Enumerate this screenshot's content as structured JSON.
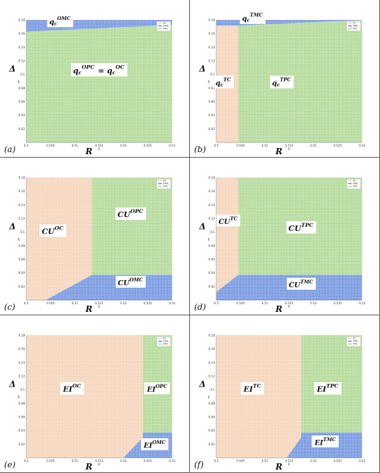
{
  "colors": {
    "OC": "#f3c9a9",
    "TC": "#f3c9a9",
    "OPC": "#9fd07d",
    "TPC": "#9fd07d",
    "OMC": "#4f7bd8",
    "TMC": "#4f7bd8",
    "border": "#555555"
  },
  "chart_data": [
    {
      "type": "heatmap",
      "panel_label": "(a)",
      "xlabel": "R",
      "ylabel": "Δ",
      "x_axis_small_label": "R",
      "y_axis_small_label": "Δ",
      "xlim": [
        0.5,
        0.53
      ],
      "ylim": [
        0,
        0.18
      ],
      "xticks": [
        "0.5",
        "0.505",
        "0.51",
        "0.515",
        "0.52",
        "0.525",
        "0.53"
      ],
      "yticks": [
        "0.02",
        "0.04",
        "0.06",
        "0.08",
        "0.1",
        "0.12",
        "0.14",
        "0.16",
        "0.18"
      ],
      "legend": [
        "OC",
        "OMC",
        "OPC"
      ],
      "legend_position": "top-right",
      "regions": [
        {
          "name": "OPC",
          "polygon": [
            [
              0.5,
              0
            ],
            [
              0.53,
              0
            ],
            [
              0.53,
              0.173
            ],
            [
              0.5,
              0.163
            ]
          ]
        },
        {
          "name": "OMC",
          "polygon": [
            [
              0.5,
              0.163
            ],
            [
              0.53,
              0.173
            ],
            [
              0.53,
              0.18
            ],
            [
              0.5,
              0.18
            ]
          ]
        }
      ],
      "annotations": [
        {
          "base": "q",
          "sub": "c",
          "sup": "OMC",
          "x": 0.507,
          "y": 0.177,
          "size": 10
        },
        {
          "base": "q",
          "sub": "c",
          "sup": "OPC",
          "tail": {
            "base": "q",
            "sub": "c",
            "sup": "OC"
          },
          "joiner": "=",
          "x": 0.515,
          "y": 0.105,
          "size": 11
        }
      ]
    },
    {
      "type": "heatmap",
      "panel_label": "(b)",
      "xlabel": "R",
      "ylabel": "Δ",
      "x_axis_small_label": "R",
      "y_axis_small_label": "Δ",
      "xlim": [
        0.5,
        0.53
      ],
      "ylim": [
        0,
        0.18
      ],
      "xticks": [
        "0.5",
        "0.505",
        "0.51",
        "0.515",
        "0.52",
        "0.525",
        "0.53"
      ],
      "yticks": [
        "0.02",
        "0.04",
        "0.06",
        "0.08",
        "0.1",
        "0.12",
        "0.14",
        "0.16",
        "0.18"
      ],
      "legend": [
        "TC",
        "TMC",
        "TPC"
      ],
      "legend_position": "top-right",
      "regions": [
        {
          "name": "TC",
          "polygon": [
            [
              0.5,
              0
            ],
            [
              0.5045,
              0
            ],
            [
              0.5045,
              0.172
            ],
            [
              0.5,
              0.172
            ]
          ]
        },
        {
          "name": "TPC",
          "polygon": [
            [
              0.5045,
              0
            ],
            [
              0.53,
              0
            ],
            [
              0.53,
              0.18
            ],
            [
              0.5045,
              0.173
            ]
          ]
        },
        {
          "name": "TMC",
          "polygon": [
            [
              0.5,
              0.172
            ],
            [
              0.5045,
              0.172
            ],
            [
              0.53,
              0.18
            ],
            [
              0.5,
              0.18
            ]
          ]
        }
      ],
      "annotations": [
        {
          "base": "q",
          "sub": "c",
          "sup": "TMC",
          "x": 0.5075,
          "y": 0.182,
          "size": 10
        },
        {
          "base": "q",
          "sub": "c",
          "sup": "TC",
          "x": 0.5015,
          "y": 0.087,
          "size": 10
        },
        {
          "base": "q",
          "sub": "c",
          "sup": "TPC",
          "x": 0.5135,
          "y": 0.087,
          "size": 10
        }
      ]
    },
    {
      "type": "heatmap",
      "panel_label": "(c)",
      "xlabel": "R",
      "ylabel": "Δ",
      "x_axis_small_label": "R",
      "y_axis_small_label": "Δ",
      "xlim": [
        0.5,
        0.53
      ],
      "ylim": [
        0,
        0.18
      ],
      "xticks": [
        "0.5",
        "0.505",
        "0.51",
        "0.515",
        "0.52",
        "0.525",
        "0.53"
      ],
      "yticks": [
        "0.02",
        "0.04",
        "0.06",
        "0.08",
        "0.1",
        "0.12",
        "0.14",
        "0.16",
        "0.18"
      ],
      "legend": [
        "OC",
        "OMC",
        "OPC"
      ],
      "legend_position": "top-right",
      "regions": [
        {
          "name": "OC",
          "polygon": [
            [
              0.5,
              0
            ],
            [
              0.504,
              0
            ],
            [
              0.5135,
              0.037
            ],
            [
              0.5135,
              0.18
            ],
            [
              0.5,
              0.18
            ]
          ]
        },
        {
          "name": "OPC",
          "polygon": [
            [
              0.5135,
              0.037
            ],
            [
              0.53,
              0.037
            ],
            [
              0.53,
              0.18
            ],
            [
              0.5135,
              0.18
            ]
          ]
        },
        {
          "name": "OMC",
          "polygon": [
            [
              0.504,
              0
            ],
            [
              0.53,
              0
            ],
            [
              0.53,
              0.037
            ],
            [
              0.5135,
              0.037
            ]
          ]
        }
      ],
      "annotations": [
        {
          "base": "CU",
          "sup": "OC",
          "x": 0.5055,
          "y": 0.1,
          "size": 11
        },
        {
          "base": "CU",
          "sup": "OPC",
          "x": 0.5215,
          "y": 0.125,
          "size": 11
        },
        {
          "base": "CU",
          "sup": "OMC",
          "x": 0.5215,
          "y": 0.025,
          "size": 10
        }
      ]
    },
    {
      "type": "heatmap",
      "panel_label": "(d)",
      "xlabel": "R",
      "ylabel": "Δ",
      "x_axis_small_label": "R",
      "y_axis_small_label": "Δ",
      "xlim": [
        0.5,
        0.53
      ],
      "ylim": [
        0,
        0.18
      ],
      "xticks": [
        "0.5",
        "0.505",
        "0.51",
        "0.515",
        "0.52",
        "0.525",
        "0.53"
      ],
      "yticks": [
        "0.02",
        "0.04",
        "0.06",
        "0.08",
        "0.1",
        "0.12",
        "0.14",
        "0.16",
        "0.18"
      ],
      "legend": [
        "TC",
        "TMC",
        "TPC"
      ],
      "legend_position": "top-right",
      "regions": [
        {
          "name": "TC",
          "polygon": [
            [
              0.5,
              0.012
            ],
            [
              0.5045,
              0.037
            ],
            [
              0.5045,
              0.18
            ],
            [
              0.5,
              0.18
            ]
          ]
        },
        {
          "name": "TPC",
          "polygon": [
            [
              0.5045,
              0.037
            ],
            [
              0.53,
              0.037
            ],
            [
              0.53,
              0.18
            ],
            [
              0.5045,
              0.18
            ]
          ]
        },
        {
          "name": "TMC",
          "polygon": [
            [
              0.5,
              0
            ],
            [
              0.53,
              0
            ],
            [
              0.53,
              0.037
            ],
            [
              0.5045,
              0.037
            ],
            [
              0.5,
              0.012
            ]
          ]
        }
      ],
      "annotations": [
        {
          "base": "CU",
          "sup": "TC",
          "x": 0.5025,
          "y": 0.115,
          "size": 10
        },
        {
          "base": "CU",
          "sup": "TPC",
          "x": 0.5175,
          "y": 0.105,
          "size": 11
        },
        {
          "base": "CU",
          "sup": "TMC",
          "x": 0.5175,
          "y": 0.022,
          "size": 10
        }
      ]
    },
    {
      "type": "heatmap",
      "panel_label": "(e)",
      "xlabel": "R",
      "ylabel": "Δ",
      "x_axis_small_label": "R",
      "y_axis_small_label": "Δ",
      "xlim": [
        0.5,
        0.53
      ],
      "ylim": [
        0,
        0.18
      ],
      "xticks": [
        "0.5",
        "0.505",
        "0.51",
        "0.515",
        "0.52",
        "0.525",
        "0.53"
      ],
      "yticks": [
        "0.02",
        "0.04",
        "0.06",
        "0.08",
        "0.1",
        "0.12",
        "0.14",
        "0.16",
        "0.18"
      ],
      "legend": [
        "OC",
        "OMC",
        "OPC"
      ],
      "legend_position": "top-right",
      "regions": [
        {
          "name": "OC",
          "polygon": [
            [
              0.5,
              0
            ],
            [
              0.52,
              0
            ],
            [
              0.524,
              0.03
            ],
            [
              0.524,
              0.18
            ],
            [
              0.5,
              0.18
            ]
          ]
        },
        {
          "name": "OPC",
          "polygon": [
            [
              0.524,
              0.037
            ],
            [
              0.53,
              0.037
            ],
            [
              0.53,
              0.18
            ],
            [
              0.524,
              0.18
            ]
          ]
        },
        {
          "name": "OMC",
          "polygon": [
            [
              0.52,
              0
            ],
            [
              0.53,
              0
            ],
            [
              0.53,
              0.037
            ],
            [
              0.524,
              0.037
            ],
            [
              0.524,
              0.03
            ]
          ]
        }
      ],
      "annotations": [
        {
          "base": "EI",
          "sup": "OC",
          "x": 0.5095,
          "y": 0.1,
          "size": 11
        },
        {
          "base": "EI",
          "sup": "OPC",
          "x": 0.527,
          "y": 0.1,
          "size": 10
        },
        {
          "base": "EI",
          "sup": "OMC",
          "x": 0.5265,
          "y": 0.018,
          "size": 10
        }
      ]
    },
    {
      "type": "heatmap",
      "panel_label": "(f)",
      "xlabel": "R",
      "ylabel": "Δ",
      "x_axis_small_label": "R",
      "y_axis_small_label": "Δ",
      "xlim": [
        0.5,
        0.53
      ],
      "ylim": [
        0,
        0.18
      ],
      "xticks": [
        "0.5",
        "0.505",
        "0.51",
        "0.515",
        "0.52",
        "0.525",
        "0.53"
      ],
      "yticks": [
        "0.02",
        "0.04",
        "0.06",
        "0.08",
        "0.1",
        "0.12",
        "0.14",
        "0.16",
        "0.18"
      ],
      "legend": [
        "TC",
        "TMC",
        "TPC"
      ],
      "legend_position": "top-right",
      "regions": [
        {
          "name": "TC",
          "polygon": [
            [
              0.5,
              0
            ],
            [
              0.5145,
              0
            ],
            [
              0.5175,
              0.03
            ],
            [
              0.5175,
              0.18
            ],
            [
              0.5,
              0.18
            ]
          ]
        },
        {
          "name": "TPC",
          "polygon": [
            [
              0.5175,
              0.037
            ],
            [
              0.53,
              0.037
            ],
            [
              0.53,
              0.18
            ],
            [
              0.5175,
              0.18
            ]
          ]
        },
        {
          "name": "TMC",
          "polygon": [
            [
              0.5145,
              0
            ],
            [
              0.53,
              0
            ],
            [
              0.53,
              0.037
            ],
            [
              0.5175,
              0.037
            ],
            [
              0.5175,
              0.03
            ]
          ]
        }
      ],
      "annotations": [
        {
          "base": "EI",
          "sup": "TC",
          "x": 0.5075,
          "y": 0.1,
          "size": 11
        },
        {
          "base": "EI",
          "sup": "TPC",
          "x": 0.523,
          "y": 0.1,
          "size": 11
        },
        {
          "base": "EI",
          "sup": "TMC",
          "x": 0.5225,
          "y": 0.022,
          "size": 10
        }
      ]
    }
  ]
}
